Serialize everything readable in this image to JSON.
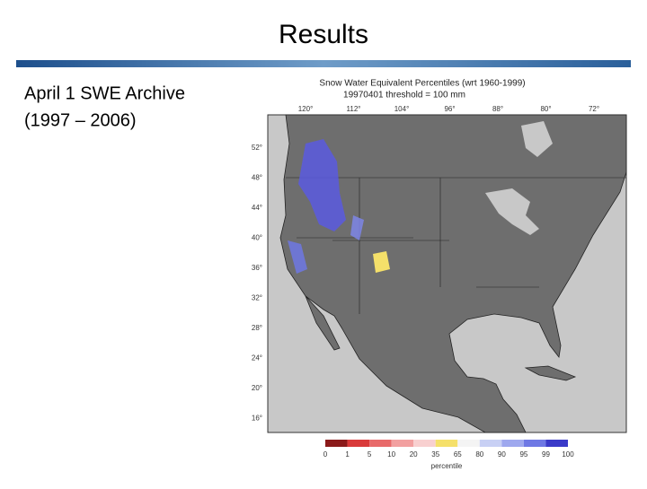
{
  "slide": {
    "title": "Results",
    "body_lines": [
      "April 1 SWE Archive",
      "(1997 – 2006)"
    ],
    "map": {
      "title": "Snow Water Equivalent Percentiles (wrt 1960-1999)",
      "subtitle": "19970401     threshold = 100 mm",
      "longitude_labels": [
        "120°",
        "112°",
        "104°",
        "96°",
        "88°",
        "80°",
        "72°"
      ],
      "latitude_labels": [
        "52°",
        "48°",
        "44°",
        "40°",
        "36°",
        "32°",
        "28°",
        "24°",
        "20°",
        "16°"
      ],
      "colorbar": {
        "colors": [
          "#8b1a1a",
          "#d93a3a",
          "#e86a6a",
          "#f2a0a0",
          "#f8d0d0",
          "#f5e06a",
          "#f4f4f4",
          "#c8d0f4",
          "#9ea8ee",
          "#6e78e4",
          "#3a3ac8"
        ],
        "labels": [
          "0",
          "1",
          "5",
          "10",
          "20",
          "35",
          "65",
          "80",
          "90",
          "95",
          "99",
          "100"
        ],
        "caption": "percentile"
      }
    }
  }
}
